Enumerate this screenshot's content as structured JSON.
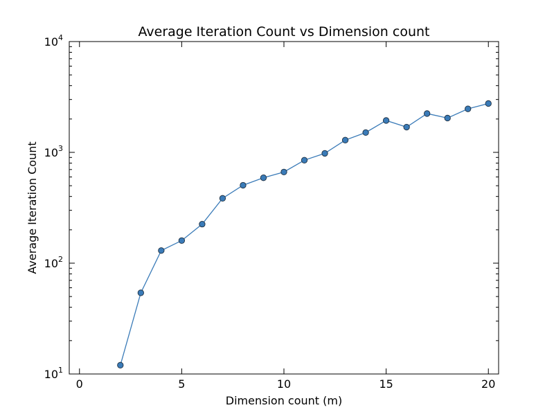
{
  "chart_data": {
    "type": "line",
    "title": "Average Iteration Count vs Dimension count",
    "xlabel": "Dimension count (m)",
    "ylabel": "Average Iteration Count",
    "xlim": [
      -0.5,
      20.5
    ],
    "ylim": [
      10,
      10000
    ],
    "yscale": "log",
    "grid": false,
    "x_ticks": [
      0,
      5,
      10,
      15,
      20
    ],
    "y_ticks": [
      {
        "value": 10,
        "base": "10",
        "exp": "1"
      },
      {
        "value": 100,
        "base": "10",
        "exp": "2"
      },
      {
        "value": 1000,
        "base": "10",
        "exp": "3"
      },
      {
        "value": 10000,
        "base": "10",
        "exp": "4"
      }
    ],
    "series": [
      {
        "line_color": "#3a7bb8",
        "marker_color": "#3a7bb8",
        "x": [
          2,
          3,
          4,
          5,
          6,
          7,
          8,
          9,
          10,
          11,
          12,
          13,
          14,
          15,
          16,
          17,
          18,
          19,
          20
        ],
        "y": [
          12,
          54,
          130,
          160,
          225,
          385,
          505,
          590,
          665,
          850,
          980,
          1290,
          1510,
          1940,
          1690,
          2240,
          2040,
          2470,
          2760
        ]
      }
    ]
  }
}
